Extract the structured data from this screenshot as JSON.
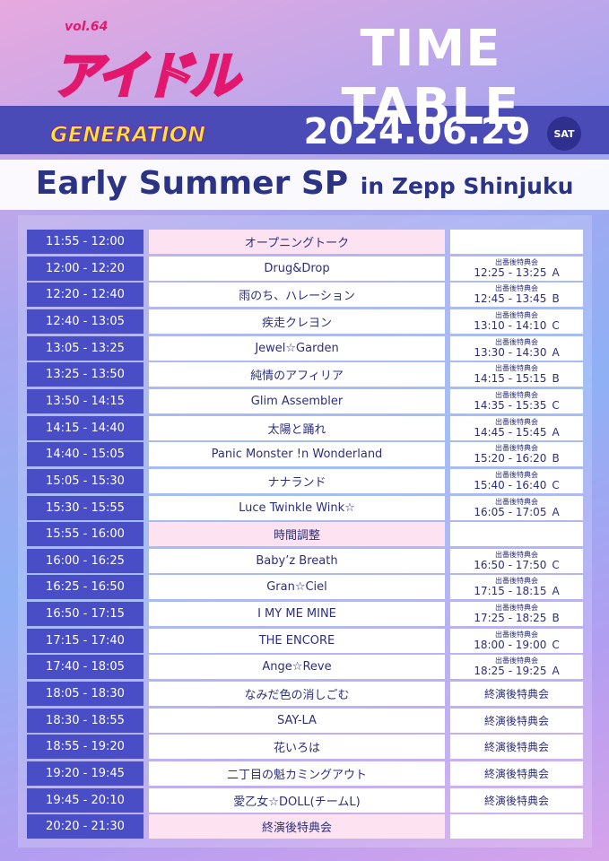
{
  "header": {
    "volume": "vol.64",
    "logo": "アイドル",
    "logo_sub": "GENERATION",
    "title": "TIME TABLE",
    "date": "2024.06.29",
    "day": "SAT"
  },
  "event": {
    "name": "Early Summer SP",
    "venue": "in Zepp Shinjuku"
  },
  "table": {
    "rows": [
      {
        "time": "11:55 - 12:00",
        "act": "オープニングトーク"
      },
      {
        "time": "12:00 - 12:20",
        "act": "Drug&Drop",
        "benefit": {
          "label": "出番後特典会",
          "time": "12:25 - 13:25",
          "booth": "A"
        }
      },
      {
        "time": "12:20 - 12:40",
        "act": "雨のち、ハレーション",
        "benefit": {
          "label": "出番後特典会",
          "time": "12:45 - 13:45",
          "booth": "B"
        }
      },
      {
        "time": "12:40 - 13:05",
        "act": "疾走クレヨン",
        "benefit": {
          "label": "出番後特典会",
          "time": "13:10 - 14:10",
          "booth": "C"
        }
      },
      {
        "time": "13:05 - 13:25",
        "act": "Jewel☆Garden",
        "benefit": {
          "label": "出番後特典会",
          "time": "13:30 - 14:30",
          "booth": "A"
        }
      },
      {
        "time": "13:25 - 13:50",
        "act": "純情のアフィリア",
        "benefit": {
          "label": "出番後特典会",
          "time": "14:15 - 15:15",
          "booth": "B"
        }
      },
      {
        "time": "13:50 - 14:15",
        "act": "Glim Assembler",
        "benefit": {
          "label": "出番後特典会",
          "time": "14:35 - 15:35",
          "booth": "C"
        }
      },
      {
        "time": "14:15 - 14:40",
        "act": "太陽と踊れ",
        "benefit": {
          "label": "出番後特典会",
          "time": "14:45 - 15:45",
          "booth": "A"
        }
      },
      {
        "time": "14:40 - 15:05",
        "act": "Panic Monster !n Wonderland",
        "benefit": {
          "label": "出番後特典会",
          "time": "15:20 - 16:20",
          "booth": "B"
        }
      },
      {
        "time": "15:05 - 15:30",
        "act": "ナナランド",
        "benefit": {
          "label": "出番後特典会",
          "time": "15:40 - 16:40",
          "booth": "C"
        }
      },
      {
        "time": "15:30 - 15:55",
        "act": "Luce Twinkle Wink☆",
        "benefit": {
          "label": "出番後特典会",
          "time": "16:05 - 17:05",
          "booth": "A"
        }
      },
      {
        "time": "15:55 - 16:00",
        "act": "時間調整"
      },
      {
        "time": "16:00 - 16:25",
        "act": "Baby’z Breath",
        "benefit": {
          "label": "出番後特典会",
          "time": "16:50 - 17:50",
          "booth": "C"
        }
      },
      {
        "time": "16:25 - 16:50",
        "act": "Gran☆Ciel",
        "benefit": {
          "label": "出番後特典会",
          "time": "17:15 - 18:15",
          "booth": "A"
        }
      },
      {
        "time": "16:50 - 17:15",
        "act": "I MY ME MINE",
        "benefit": {
          "label": "出番後特典会",
          "time": "17:25 - 18:25",
          "booth": "B"
        }
      },
      {
        "time": "17:15 - 17:40",
        "act": "THE ENCORE",
        "benefit": {
          "label": "出番後特典会",
          "time": "18:00 - 19:00",
          "booth": "C"
        }
      },
      {
        "time": "17:40 - 18:05",
        "act": "Ange☆Reve",
        "benefit": {
          "label": "出番後特典会",
          "time": "18:25 - 19:25",
          "booth": "A"
        }
      },
      {
        "time": "18:05 - 18:30",
        "act": "なみだ色の消しごむ",
        "after": "終演後特典会"
      },
      {
        "time": "18:30 - 18:55",
        "act": "SAY-LA",
        "after": "終演後特典会"
      },
      {
        "time": "18:55 - 19:20",
        "act": "花いろは",
        "after": "終演後特典会"
      },
      {
        "time": "19:20 - 19:45",
        "act": "二丁目の魁カミングアウト",
        "after": "終演後特典会"
      },
      {
        "time": "19:45 - 20:10",
        "act": "愛乙女☆DOLL(チームL)",
        "after": "終演後特典会"
      },
      {
        "time": "20:20 - 21:30",
        "act": "終演後特典会"
      }
    ]
  }
}
